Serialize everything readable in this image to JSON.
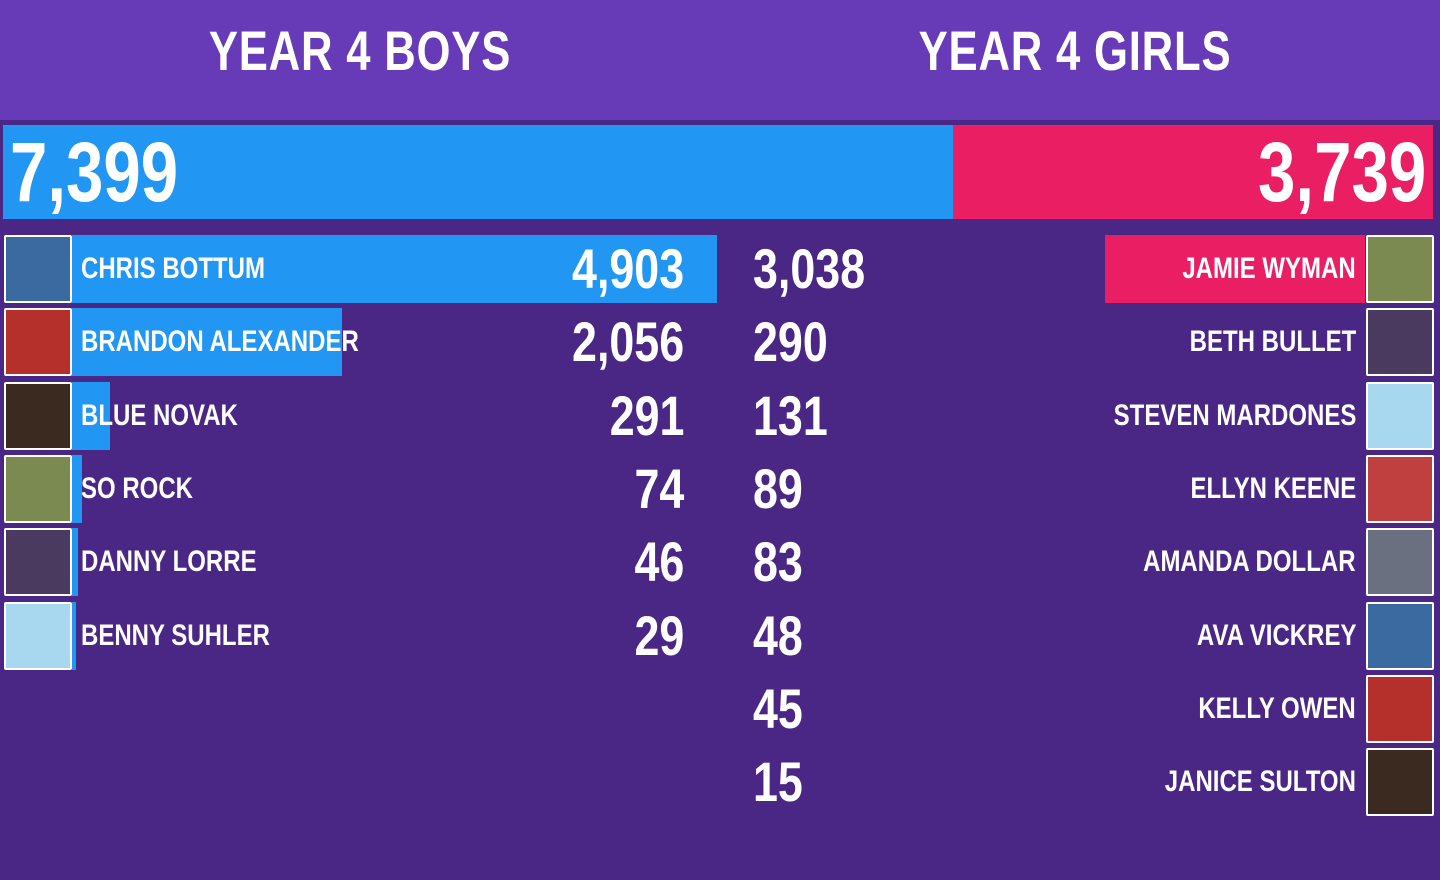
{
  "header": {
    "boys_title": "YEAR 4 BOYS",
    "girls_title": "YEAR 4 GIRLS"
  },
  "totals": {
    "boys": 7399,
    "boys_label": "7,399",
    "girls": 3739,
    "girls_label": "3,739"
  },
  "boys": [
    {
      "name": "CHRIS BOTTUM",
      "score": 4903,
      "score_label": "4,903"
    },
    {
      "name": "BRANDON ALEXANDER",
      "score": 2056,
      "score_label": "2,056"
    },
    {
      "name": "BLUE NOVAK",
      "score": 291,
      "score_label": "291"
    },
    {
      "name": "SO ROCK",
      "score": 74,
      "score_label": "74"
    },
    {
      "name": "DANNY LORRE",
      "score": 46,
      "score_label": "46"
    },
    {
      "name": "BENNY SUHLER",
      "score": 29,
      "score_label": "29"
    }
  ],
  "girls": [
    {
      "name": "JAMIE WYMAN",
      "score": 3038,
      "score_label": "3,038"
    },
    {
      "name": "BETH BULLET",
      "score": 290,
      "score_label": "290"
    },
    {
      "name": "STEVEN MARDONES",
      "score": 131,
      "score_label": "131"
    },
    {
      "name": "ELLYN KEENE",
      "score": 89,
      "score_label": "89"
    },
    {
      "name": "AMANDA DOLLAR",
      "score": 83,
      "score_label": "83"
    },
    {
      "name": "AVA VICKREY",
      "score": 48,
      "score_label": "48"
    },
    {
      "name": "KELLY OWEN",
      "score": 45,
      "score_label": "45"
    },
    {
      "name": "JANICE SULTON",
      "score": 15,
      "score_label": "15"
    }
  ]
}
